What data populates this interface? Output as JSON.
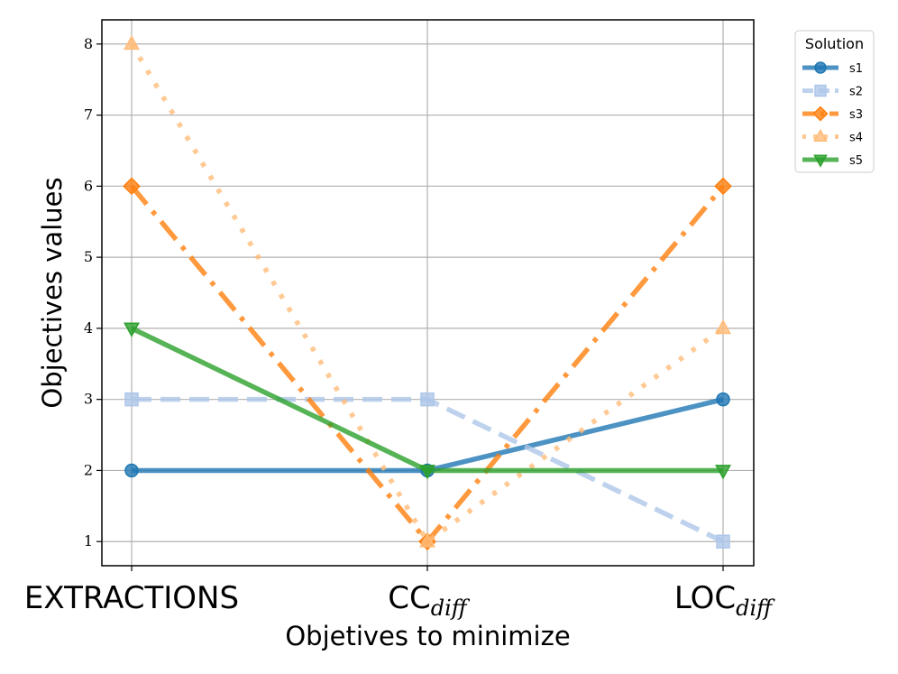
{
  "chart_data": {
    "type": "line",
    "categories": [
      {
        "main": "EXTRACTIONS",
        "sub": ""
      },
      {
        "main": "CC",
        "sub": "diff"
      },
      {
        "main": "LOC",
        "sub": "diff"
      }
    ],
    "xlabel": "Objetives to minimize",
    "ylabel": "Objectives values",
    "ylim": [
      0.66,
      8.34
    ],
    "yticks": [
      "1",
      "2",
      "3",
      "4",
      "5",
      "6",
      "7",
      "8"
    ],
    "grid": true,
    "legend": {
      "title": "Solution",
      "position": "outside-top-right"
    },
    "series": [
      {
        "name": "s1",
        "values": [
          2,
          2,
          3
        ],
        "color": "#1f77b4",
        "alpha": 0.8,
        "dash": "solid",
        "marker": "circle"
      },
      {
        "name": "s2",
        "values": [
          3,
          3,
          1
        ],
        "color": "#aec7e8",
        "alpha": 0.8,
        "dash": "dashed",
        "marker": "square"
      },
      {
        "name": "s3",
        "values": [
          6,
          1,
          6
        ],
        "color": "#ff7f0e",
        "alpha": 0.8,
        "dash": "dashdot",
        "marker": "diamond"
      },
      {
        "name": "s4",
        "values": [
          8,
          1,
          4
        ],
        "color": "#ffbb78",
        "alpha": 0.8,
        "dash": "dotted",
        "marker": "triangle-up"
      },
      {
        "name": "s5",
        "values": [
          4,
          2,
          2
        ],
        "color": "#2ca02c",
        "alpha": 0.8,
        "dash": "solid",
        "marker": "triangle-down"
      }
    ]
  }
}
